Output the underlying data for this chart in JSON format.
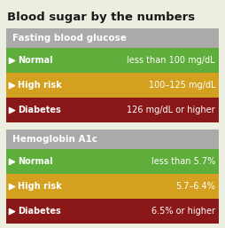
{
  "title": "Blood sugar by the numbers",
  "background_color": "#eceee0",
  "title_fontsize": 9.5,
  "title_color": "#1a1a1a",
  "header_bg": "#aaaaaa",
  "row_bg_colors": [
    "#5fad3a",
    "#d4a020",
    "#8b1818"
  ],
  "row_labels": [
    "Normal",
    "High risk",
    "Diabetes"
  ],
  "row_values": [
    [
      "less than 100 mg/dL",
      "100–125 mg/dL",
      "126 mg/dL or higher"
    ],
    [
      "less than 5.7%",
      "5.7–6.4%",
      "6.5% or higher"
    ]
  ],
  "section_headers": [
    "Fasting blood glucose",
    "Hemoglobin A1c"
  ],
  "text_color": "#ffffff",
  "label_fontsize": 7.0,
  "value_fontsize": 7.0,
  "header_fontsize": 7.5
}
